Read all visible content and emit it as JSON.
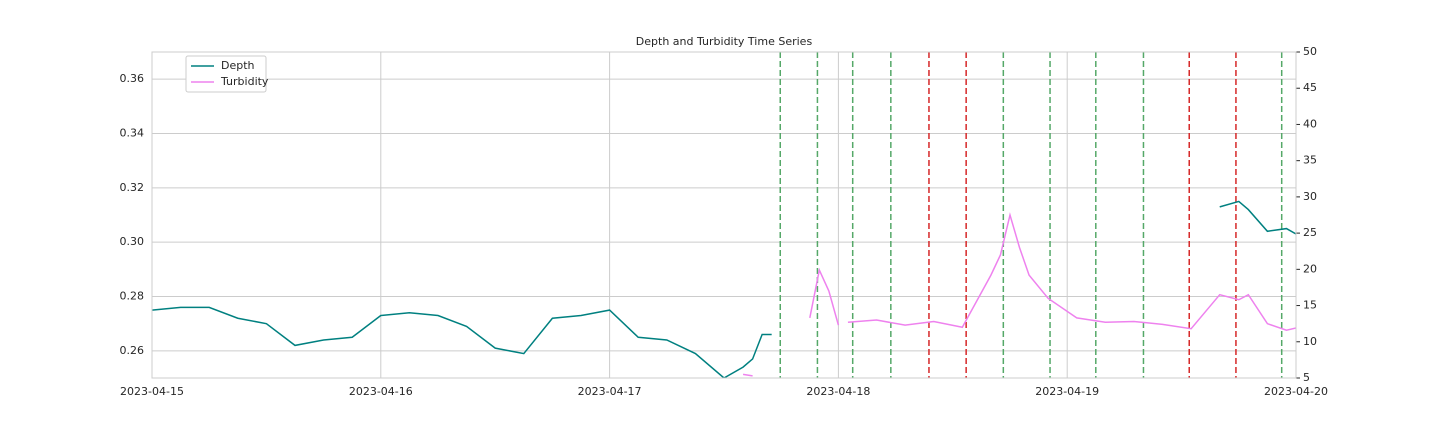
{
  "chart_data": {
    "type": "line",
    "title": "Depth and Turbidity Time Series",
    "x": [
      "2023-04-15 00:00",
      "2023-04-15 03:00",
      "2023-04-15 06:00",
      "2023-04-15 09:00",
      "2023-04-15 12:00",
      "2023-04-15 15:00",
      "2023-04-15 18:00",
      "2023-04-15 21:00",
      "2023-04-16 00:00",
      "2023-04-16 03:00",
      "2023-04-16 06:00",
      "2023-04-16 09:00",
      "2023-04-16 12:00",
      "2023-04-16 15:00",
      "2023-04-16 18:00",
      "2023-04-16 21:00",
      "2023-04-17 00:00",
      "2023-04-17 03:00",
      "2023-04-17 06:00",
      "2023-04-17 09:00",
      "2023-04-17 12:00",
      "2023-04-17 14:00",
      "2023-04-17 15:00",
      "2023-04-17 16:00",
      "2023-04-17 17:00",
      "2023-04-17 21:00",
      "2023-04-17 22:00",
      "2023-04-17 23:00",
      "2023-04-18 00:00",
      "2023-04-18 00:30",
      "2023-04-18 01:00",
      "2023-04-18 04:00",
      "2023-04-18 07:00",
      "2023-04-18 10:00",
      "2023-04-18 13:00",
      "2023-04-18 16:00",
      "2023-04-18 17:00",
      "2023-04-18 18:00",
      "2023-04-18 19:00",
      "2023-04-18 20:00",
      "2023-04-18 22:00",
      "2023-04-19 01:00",
      "2023-04-19 04:00",
      "2023-04-19 07:00",
      "2023-04-19 10:00",
      "2023-04-19 13:00",
      "2023-04-19 16:00",
      "2023-04-19 18:00",
      "2023-04-19 19:00",
      "2023-04-19 21:00",
      "2023-04-19 23:00",
      "2023-04-20 00:00"
    ],
    "series": [
      {
        "name": "Depth",
        "color": "#008080",
        "axis": "y",
        "values": [
          0.275,
          0.276,
          0.276,
          0.272,
          0.27,
          0.262,
          0.264,
          0.265,
          0.273,
          0.274,
          0.273,
          0.269,
          0.261,
          0.259,
          0.272,
          0.273,
          0.275,
          0.265,
          0.264,
          0.259,
          0.25,
          0.254,
          0.257,
          0.266,
          0.266,
          null,
          null,
          null,
          null,
          null,
          null,
          null,
          null,
          null,
          null,
          null,
          null,
          null,
          null,
          null,
          null,
          null,
          null,
          null,
          null,
          null,
          0.313,
          0.315,
          0.312,
          0.304,
          0.305,
          0.303
        ]
      },
      {
        "name": "Turbidity",
        "color": "#ee82ee",
        "axis": "y2",
        "values": [
          null,
          null,
          null,
          null,
          null,
          null,
          null,
          null,
          null,
          null,
          null,
          null,
          null,
          null,
          null,
          null,
          null,
          null,
          null,
          null,
          null,
          5.5,
          5.3,
          null,
          null,
          13.3,
          19.9,
          17.0,
          12.3,
          null,
          12.7,
          13.0,
          12.3,
          12.8,
          12.0,
          19.2,
          22.0,
          27.5,
          23.0,
          19.2,
          16.0,
          13.3,
          12.7,
          12.8,
          12.4,
          11.8,
          16.5,
          15.8,
          16.5,
          12.5,
          11.6,
          11.9
        ]
      }
    ],
    "vlines": [
      {
        "x": "2023-04-17 17:54",
        "color": "#55a868"
      },
      {
        "x": "2023-04-17 21:48",
        "color": "#55a868"
      },
      {
        "x": "2023-04-18 01:30",
        "color": "#55a868"
      },
      {
        "x": "2023-04-18 05:30",
        "color": "#55a868"
      },
      {
        "x": "2023-04-18 09:30",
        "color": "#d62728"
      },
      {
        "x": "2023-04-18 13:24",
        "color": "#d62728"
      },
      {
        "x": "2023-04-18 17:18",
        "color": "#55a868"
      },
      {
        "x": "2023-04-18 22:12",
        "color": "#55a868"
      },
      {
        "x": "2023-04-19 03:00",
        "color": "#55a868"
      },
      {
        "x": "2023-04-19 08:00",
        "color": "#55a868"
      },
      {
        "x": "2023-04-19 12:48",
        "color": "#d62728"
      },
      {
        "x": "2023-04-19 17:42",
        "color": "#d62728"
      },
      {
        "x": "2023-04-19 22:30",
        "color": "#55a868"
      }
    ],
    "xlim": [
      "2023-04-15",
      "2023-04-20"
    ],
    "xticks": [
      "2023-04-15",
      "2023-04-16",
      "2023-04-17",
      "2023-04-18",
      "2023-04-19",
      "2023-04-20"
    ],
    "ylim": [
      0.25,
      0.37
    ],
    "yticks": [
      0.26,
      0.28,
      {
        "value": 0.3,
        "label": "0.30"
      },
      0.32,
      0.34,
      0.36
    ],
    "y2lim": [
      5,
      50
    ],
    "y2ticks": [
      5,
      10,
      15,
      20,
      25,
      30,
      35,
      40,
      45,
      50
    ],
    "grid": true,
    "legend": "upper left"
  }
}
